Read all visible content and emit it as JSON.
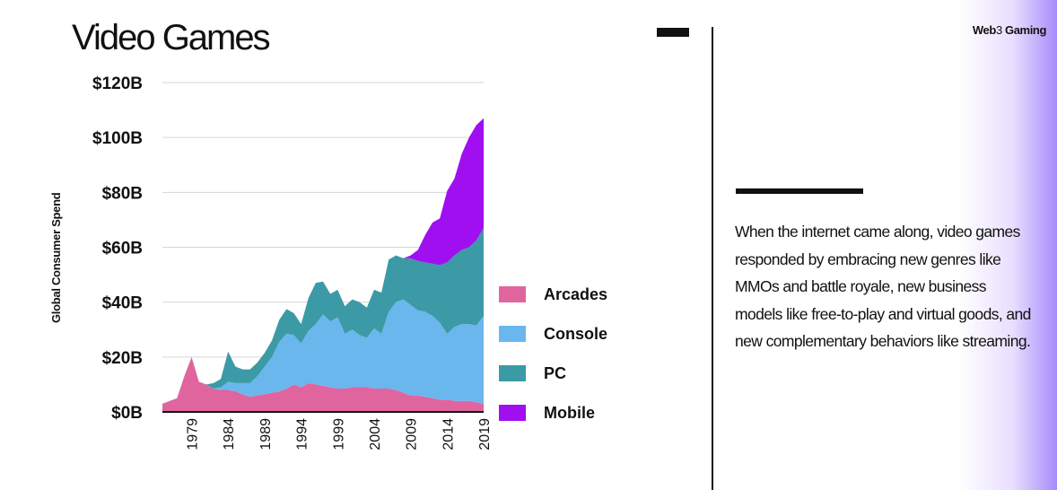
{
  "header": {
    "brand_prefix": "Web",
    "brand_number": "3",
    "brand_suffix": " Gaming"
  },
  "body_text": "When the internet came along, video games responded by embracing new genres like MMOs and battle royale, new business models like free-to-play and virtual goods, and new complementary behaviors like streaming.",
  "chart_data": {
    "type": "area",
    "stacked": true,
    "title": "Video Games",
    "ylabel": "Global Consumer Spend",
    "xlabel": "",
    "xlim": [
      1975,
      2019
    ],
    "ylim": [
      0,
      120
    ],
    "y_ticks": [
      0,
      20,
      40,
      60,
      80,
      100,
      120
    ],
    "y_tick_labels": [
      "$0B",
      "$20B",
      "$40B",
      "$60B",
      "$80B",
      "$100B",
      "$120B"
    ],
    "x_ticks": [
      1979,
      1984,
      1989,
      1994,
      1999,
      2004,
      2009,
      2014,
      2019
    ],
    "x_tick_labels": [
      "1979",
      "1984",
      "1989",
      "1994",
      "1999",
      "2004",
      "2009",
      "2014",
      "2019"
    ],
    "grid": true,
    "legend_position": "right",
    "x": [
      1975,
      1976,
      1977,
      1978,
      1979,
      1980,
      1981,
      1982,
      1983,
      1984,
      1985,
      1986,
      1987,
      1988,
      1989,
      1990,
      1991,
      1992,
      1993,
      1994,
      1995,
      1996,
      1997,
      1998,
      1999,
      2000,
      2001,
      2002,
      2003,
      2004,
      2005,
      2006,
      2007,
      2008,
      2009,
      2010,
      2011,
      2012,
      2013,
      2014,
      2015,
      2016,
      2017,
      2018,
      2019
    ],
    "series": [
      {
        "name": "Arcades",
        "color": "#e0659f",
        "values": [
          3,
          4,
          5,
          13,
          20,
          11,
          10,
          8.5,
          8,
          8,
          7.5,
          6.5,
          5.5,
          6,
          6.5,
          7,
          7.5,
          8.5,
          10,
          9,
          10.5,
          10,
          9.5,
          9,
          8.5,
          8.5,
          9,
          9,
          9,
          8.5,
          8.5,
          8.5,
          8,
          7,
          6,
          6,
          5.5,
          5,
          4.5,
          4.5,
          4,
          4,
          4,
          3.5,
          3
        ]
      },
      {
        "name": "Console",
        "color": "#6ab7ee",
        "values": [
          0,
          0,
          0,
          0,
          0,
          0,
          0,
          0,
          1,
          3,
          3,
          4,
          5,
          7,
          10,
          13,
          18,
          20,
          18,
          16,
          19,
          22,
          26,
          24,
          26,
          20,
          21,
          19,
          18,
          22,
          20,
          28,
          32,
          34,
          33,
          31,
          31,
          30,
          28,
          24,
          27,
          28,
          28,
          28,
          32
        ]
      },
      {
        "name": "PC",
        "color": "#3b9aa5",
        "values": [
          0,
          0,
          0,
          0,
          0,
          0,
          0,
          2,
          3,
          11,
          6,
          5,
          5,
          5,
          5,
          6,
          8,
          9,
          8,
          7,
          12,
          15,
          12,
          10,
          10,
          10,
          11,
          12,
          11,
          14,
          15,
          19,
          17,
          15,
          17,
          18,
          18,
          19,
          21,
          26,
          26,
          27,
          28,
          31,
          32
        ]
      },
      {
        "name": "Mobile",
        "color": "#a00ff0",
        "values": [
          0,
          0,
          0,
          0,
          0,
          0,
          0,
          0,
          0,
          0,
          0,
          0,
          0,
          0,
          0,
          0,
          0,
          0,
          0,
          0,
          0,
          0,
          0,
          0,
          0,
          0,
          0,
          0,
          0,
          0,
          0,
          0,
          0,
          0,
          1,
          4,
          10,
          15,
          17,
          26,
          28,
          35,
          40,
          42,
          40
        ]
      }
    ]
  }
}
